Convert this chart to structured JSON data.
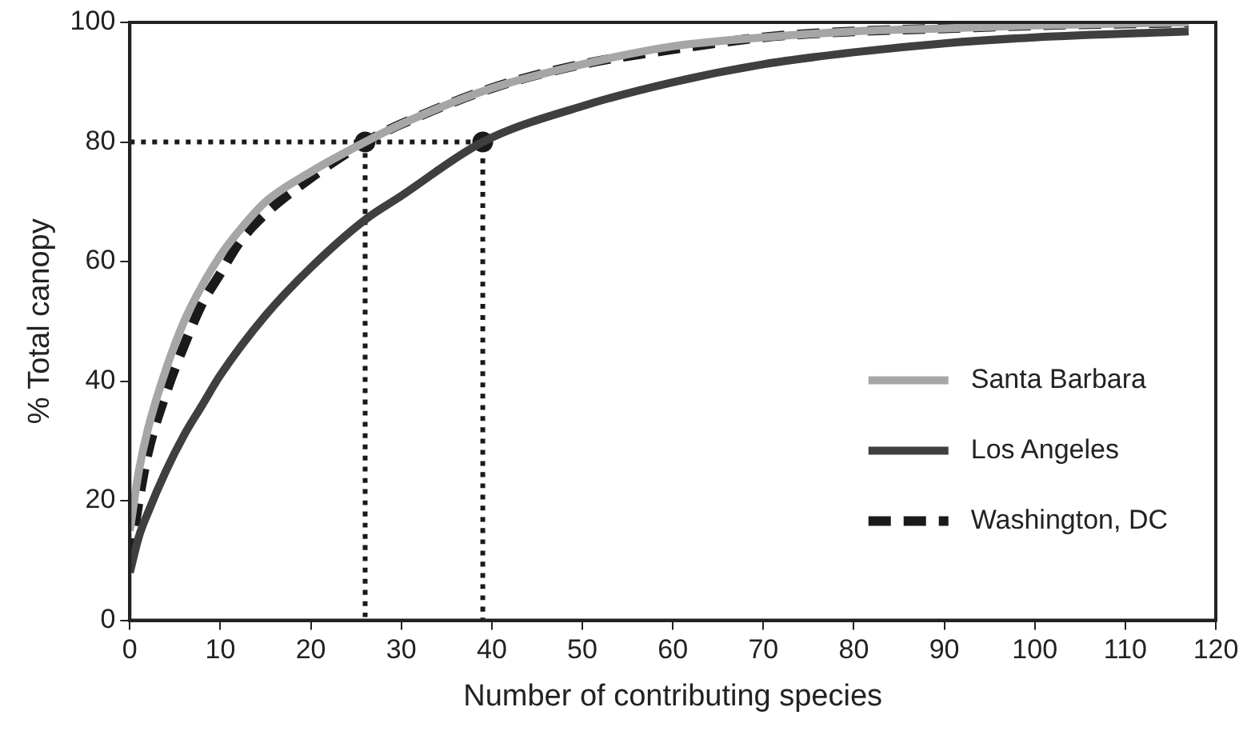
{
  "chart_data": {
    "type": "line",
    "xlabel": "Number of contributing species",
    "ylabel": "% Total canopy",
    "xlim": [
      0,
      120
    ],
    "xticks": [
      0,
      10,
      20,
      30,
      40,
      50,
      60,
      70,
      80,
      90,
      100,
      110,
      120
    ],
    "ylim": [
      0,
      100
    ],
    "yticks": [
      0,
      20,
      40,
      60,
      80,
      100
    ],
    "grid": false,
    "legend": "bottom right",
    "marker": "none",
    "series": [
      {
        "name": "Santa Barbara",
        "color": "#a6a6a6",
        "line_style": "solid",
        "x": [
          0,
          1,
          2,
          4,
          6,
          8,
          10,
          12,
          15,
          20,
          26,
          30,
          40,
          50,
          60,
          70,
          80,
          90,
          100,
          117
        ],
        "values": [
          15,
          25,
          32,
          42,
          50,
          56,
          61,
          65,
          70,
          75,
          80,
          83,
          89,
          93,
          96,
          97.5,
          98.5,
          99,
          99.5,
          100
        ]
      },
      {
        "name": "Los Angeles",
        "color": "#3f3f3f",
        "line_style": "solid",
        "x": [
          0,
          1,
          2,
          4,
          6,
          8,
          10,
          15,
          20,
          26,
          30,
          39,
          50,
          60,
          70,
          80,
          90,
          100,
          117
        ],
        "values": [
          8,
          14,
          18,
          25,
          31,
          36,
          41,
          51,
          59,
          67,
          71,
          80,
          86,
          90,
          93,
          95,
          96.5,
          97.5,
          98.5
        ]
      },
      {
        "name": "Washington, DC",
        "color": "#1a1a1a",
        "line_style": "dashed",
        "x": [
          0,
          1,
          2,
          4,
          6,
          8,
          10,
          12,
          15,
          20,
          26,
          30,
          40,
          50,
          60,
          70,
          80,
          90,
          100,
          117
        ],
        "values": [
          10,
          20,
          28,
          38,
          46,
          53,
          58,
          63,
          68,
          74,
          80,
          83,
          89,
          93,
          95.5,
          97.5,
          98.5,
          99,
          99.5,
          100
        ]
      },
      {
        "color": "#1a1a1a",
        "line_style": "dotted",
        "x": [
          0,
          39,
          39
        ],
        "values": [
          80,
          80,
          0
        ]
      },
      {
        "color": "#1a1a1a",
        "line_style": "dotted",
        "x": [
          26,
          26
        ],
        "values": [
          80,
          0
        ]
      },
      {
        "type": "scatter",
        "color": "#1a1a1a",
        "marker": "circle",
        "x": [
          26,
          39
        ],
        "values": [
          80,
          80
        ]
      }
    ]
  }
}
